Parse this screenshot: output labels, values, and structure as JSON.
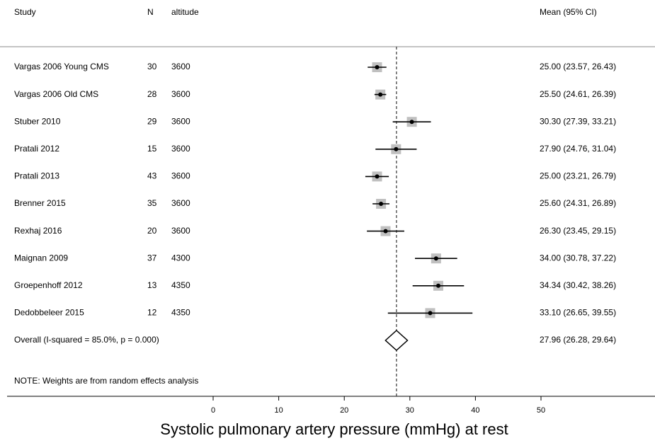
{
  "chart_data": {
    "type": "forest",
    "headers": {
      "study": "Study",
      "n": "N",
      "altitude": "altitude",
      "estimate": "Mean (95% CI)"
    },
    "studies": [
      {
        "name": "Vargas 2006 Young CMS",
        "n": 30,
        "altitude": 3600,
        "mean": 25.0,
        "lower": 23.57,
        "upper": 26.43,
        "value_label": "25.00 (23.57, 26.43)"
      },
      {
        "name": "Vargas 2006 Old CMS",
        "n": 28,
        "altitude": 3600,
        "mean": 25.5,
        "lower": 24.61,
        "upper": 26.39,
        "value_label": "25.50 (24.61, 26.39)"
      },
      {
        "name": "Stuber 2010",
        "n": 29,
        "altitude": 3600,
        "mean": 30.3,
        "lower": 27.39,
        "upper": 33.21,
        "value_label": "30.30 (27.39, 33.21)"
      },
      {
        "name": "Pratali 2012",
        "n": 15,
        "altitude": 3600,
        "mean": 27.9,
        "lower": 24.76,
        "upper": 31.04,
        "value_label": "27.90 (24.76, 31.04)"
      },
      {
        "name": "Pratali 2013",
        "n": 43,
        "altitude": 3600,
        "mean": 25.0,
        "lower": 23.21,
        "upper": 26.79,
        "value_label": "25.00 (23.21, 26.79)"
      },
      {
        "name": "Brenner 2015",
        "n": 35,
        "altitude": 3600,
        "mean": 25.6,
        "lower": 24.31,
        "upper": 26.89,
        "value_label": "25.60 (24.31, 26.89)"
      },
      {
        "name": "Rexhaj 2016",
        "n": 20,
        "altitude": 3600,
        "mean": 26.3,
        "lower": 23.45,
        "upper": 29.15,
        "value_label": "26.30 (23.45, 29.15)"
      },
      {
        "name": "Maignan 2009",
        "n": 37,
        "altitude": 4300,
        "mean": 34.0,
        "lower": 30.78,
        "upper": 37.22,
        "value_label": "34.00 (30.78, 37.22)"
      },
      {
        "name": "Groepenhoff 2012",
        "n": 13,
        "altitude": 4350,
        "mean": 34.34,
        "lower": 30.42,
        "upper": 38.26,
        "value_label": "34.34 (30.42, 38.26)"
      },
      {
        "name": "Dedobbeleer 2015",
        "n": 12,
        "altitude": 4350,
        "mean": 33.1,
        "lower": 26.65,
        "upper": 39.55,
        "value_label": "33.10 (26.65, 39.55)"
      }
    ],
    "overall": {
      "name": "Overall  (I-squared = 85.0%, p = 0.000)",
      "mean": 27.96,
      "lower": 26.28,
      "upper": 29.64,
      "value_label": "27.96 (26.28, 29.64)"
    },
    "note": "NOTE: Weights are from random effects analysis",
    "xlabel": "Systolic pulmonary artery pressure (mmHg) at rest",
    "xlim": [
      0,
      50
    ],
    "xticks": [
      0,
      10,
      20,
      30,
      40,
      50
    ],
    "box_color": "#c0c0c0",
    "line_color": "#000000"
  }
}
